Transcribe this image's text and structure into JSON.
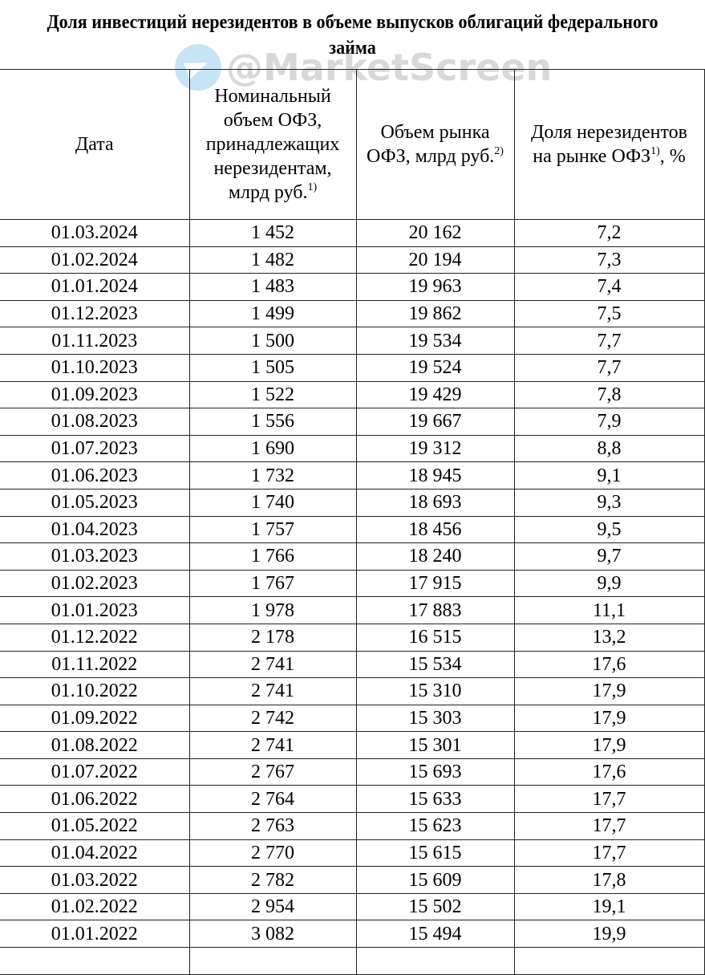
{
  "title": "Доля инвестиций нерезидентов в объеме выпусков облигаций федерального займа",
  "watermark": "@MarketScreen",
  "headers": [
    {
      "label": "Дата",
      "note": ""
    },
    {
      "label": "Номинальный объем ОФЗ, принадлежащих нерезидентам, млрд руб.",
      "note": "1)"
    },
    {
      "label": "Объем рынка ОФЗ, млрд руб.",
      "note": "2)"
    },
    {
      "label": "Доля нерезидентов на рынке ОФЗ",
      "note": "1)",
      "suffix": ", %"
    }
  ],
  "rows": [
    [
      "01.03.2024",
      "1 452",
      "20 162",
      "7,2"
    ],
    [
      "01.02.2024",
      "1 482",
      "20 194",
      "7,3"
    ],
    [
      "01.01.2024",
      "1 483",
      "19 963",
      "7,4"
    ],
    [
      "01.12.2023",
      "1 499",
      "19 862",
      "7,5"
    ],
    [
      "01.11.2023",
      "1 500",
      "19 534",
      "7,7"
    ],
    [
      "01.10.2023",
      "1 505",
      "19 524",
      "7,7"
    ],
    [
      "01.09.2023",
      "1 522",
      "19 429",
      "7,8"
    ],
    [
      "01.08.2023",
      "1 556",
      "19 667",
      "7,9"
    ],
    [
      "01.07.2023",
      "1 690",
      "19 312",
      "8,8"
    ],
    [
      "01.06.2023",
      "1 732",
      "18 945",
      "9,1"
    ],
    [
      "01.05.2023",
      "1 740",
      "18 693",
      "9,3"
    ],
    [
      "01.04.2023",
      "1 757",
      "18 456",
      "9,5"
    ],
    [
      "01.03.2023",
      "1 766",
      "18 240",
      "9,7"
    ],
    [
      "01.02.2023",
      "1 767",
      "17 915",
      "9,9"
    ],
    [
      "01.01.2023",
      "1 978",
      "17 883",
      "11,1"
    ],
    [
      "01.12.2022",
      "2 178",
      "16 515",
      "13,2"
    ],
    [
      "01.11.2022",
      "2 741",
      "15 534",
      "17,6"
    ],
    [
      "01.10.2022",
      "2 741",
      "15 310",
      "17,9"
    ],
    [
      "01.09.2022",
      "2 742",
      "15 303",
      "17,9"
    ],
    [
      "01.08.2022",
      "2 741",
      "15 301",
      "17,9"
    ],
    [
      "01.07.2022",
      "2 767",
      "15 693",
      "17,6"
    ],
    [
      "01.06.2022",
      "2 764",
      "15 633",
      "17,7"
    ],
    [
      "01.05.2022",
      "2 763",
      "15 623",
      "17,7"
    ],
    [
      "01.04.2022",
      "2 770",
      "15 615",
      "17,7"
    ],
    [
      "01.03.2022",
      "2 782",
      "15 609",
      "17,8"
    ],
    [
      "01.02.2022",
      "2 954",
      "15 502",
      "19,1"
    ],
    [
      "01.01.2022",
      "3 082",
      "15 494",
      "19,9"
    ]
  ]
}
